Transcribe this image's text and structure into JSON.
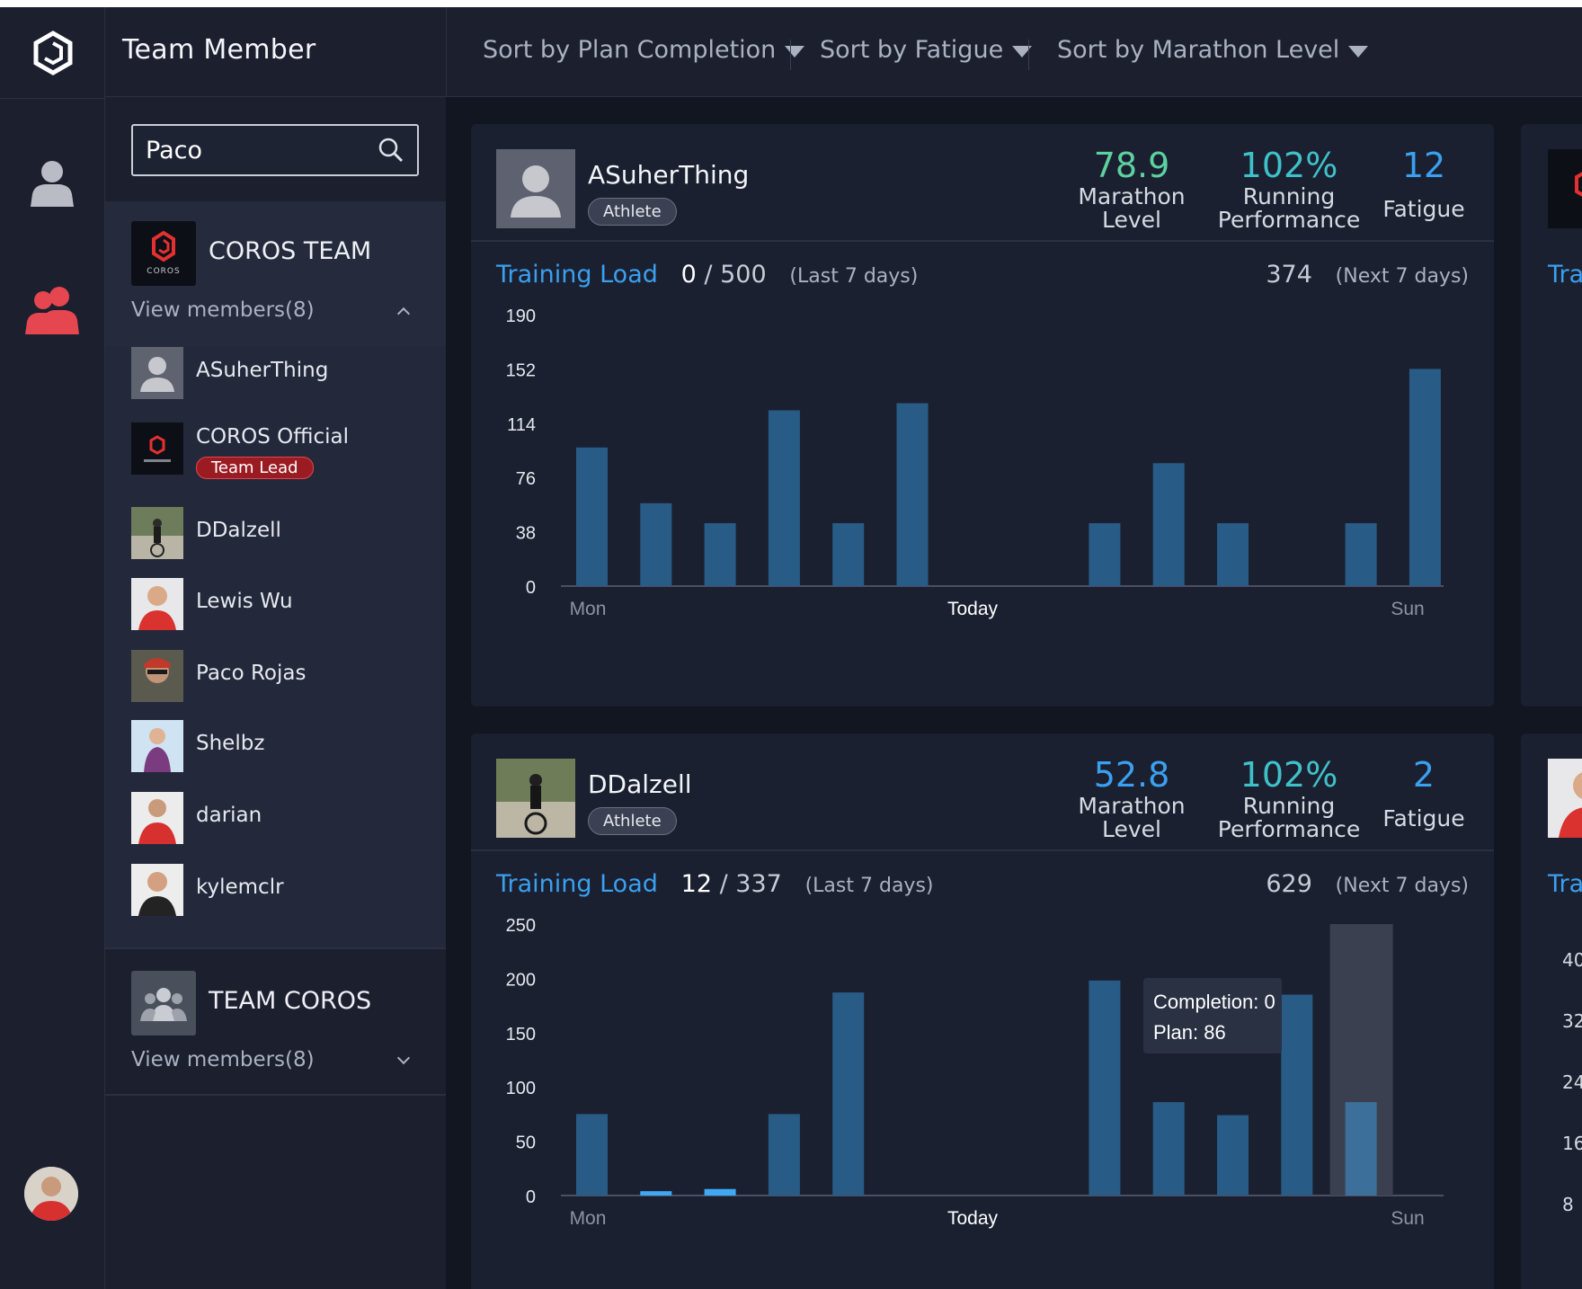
{
  "header": {
    "title": "Team Member",
    "sorts": [
      "Sort by Plan Completion",
      "Sort by Fatigue",
      "Sort by Marathon Level"
    ]
  },
  "search": {
    "value": "Paco",
    "placeholder": ""
  },
  "teams": [
    {
      "name": "COROS TEAM",
      "view_label": "View members(8)",
      "expanded": true,
      "logo_text": "COROS"
    },
    {
      "name": "TEAM COROS",
      "view_label": "View members(8)",
      "expanded": false
    }
  ],
  "members": [
    {
      "name": "ASuherThing",
      "badge": ""
    },
    {
      "name": "COROS Official",
      "badge": "Team Lead"
    },
    {
      "name": "DDalzell",
      "badge": ""
    },
    {
      "name": "Lewis Wu",
      "badge": ""
    },
    {
      "name": "Paco Rojas",
      "badge": ""
    },
    {
      "name": "Shelbz",
      "badge": ""
    },
    {
      "name": "darian",
      "badge": ""
    },
    {
      "name": "kylemclr",
      "badge": ""
    }
  ],
  "cards": [
    {
      "name": "ASuherThing",
      "role": "Athlete",
      "marathon_level": "78.9",
      "marathon_level_label": "Marathon Level",
      "running_performance": "102%",
      "running_performance_label": "Running Performance",
      "fatigue": "12",
      "fatigue_label": "Fatigue",
      "training_load_label": "Training Load",
      "current_load": "0",
      "separator": "/",
      "total_load": "500",
      "last_label": "(Last 7 days)",
      "next_load": "374",
      "next_label": "(Next 7 days)"
    },
    {
      "name": "DDalzell",
      "role": "Athlete",
      "marathon_level": "52.8",
      "marathon_level_label": "Marathon Level",
      "running_performance": "102%",
      "running_performance_label": "Running Performance",
      "fatigue": "2",
      "fatigue_label": "Fatigue",
      "training_load_label": "Training Load",
      "current_load": "12",
      "separator": "/",
      "total_load": "337",
      "last_label": "(Last 7 days)",
      "next_load": "629",
      "next_label": "(Next 7 days)",
      "tooltip": {
        "line1": "Completion: 0",
        "line2": "Plan: 86"
      }
    }
  ],
  "partial_label": "Tra",
  "partial_ticks": [
    "40",
    "32",
    "24",
    "16",
    "8"
  ],
  "colors": {
    "accent_blue": "#3aa0f0",
    "marathon_green": "#5dd1a0",
    "bar_plan": "#295b87",
    "bar_done": "#3fa8f5",
    "team_lead_red": "#e5464f"
  },
  "chart_data": [
    {
      "type": "bar",
      "title": "",
      "xlabel": "",
      "ylabel": "",
      "x_labels": [
        "Mon",
        "Today",
        "Sun"
      ],
      "yticks": [
        0,
        38,
        76,
        114,
        152,
        190
      ],
      "ylim": [
        0,
        190
      ],
      "series": [
        {
          "values": [
            97,
            58,
            44,
            123,
            44,
            128,
            0,
            0,
            44,
            86,
            44,
            0,
            44,
            152,
            0
          ]
        }
      ],
      "completion": [
        0,
        0,
        0,
        0,
        0,
        0,
        0,
        0,
        0,
        0,
        0,
        0,
        0,
        0,
        0
      ],
      "grid": false
    },
    {
      "type": "bar",
      "title": "",
      "xlabel": "",
      "ylabel": "",
      "x_labels": [
        "Mon",
        "Today",
        "Sun"
      ],
      "yticks": [
        0,
        50,
        100,
        150,
        200,
        250
      ],
      "ylim": [
        0,
        250
      ],
      "series": [
        {
          "values": [
            75,
            0,
            0,
            75,
            187,
            0,
            0,
            0,
            198,
            86,
            74,
            185,
            86,
            0
          ]
        }
      ],
      "completion": [
        0,
        4,
        6,
        0,
        0,
        0,
        0,
        0,
        0,
        0,
        0,
        0,
        0,
        0
      ],
      "highlighted_index": 12,
      "grid": false
    }
  ]
}
